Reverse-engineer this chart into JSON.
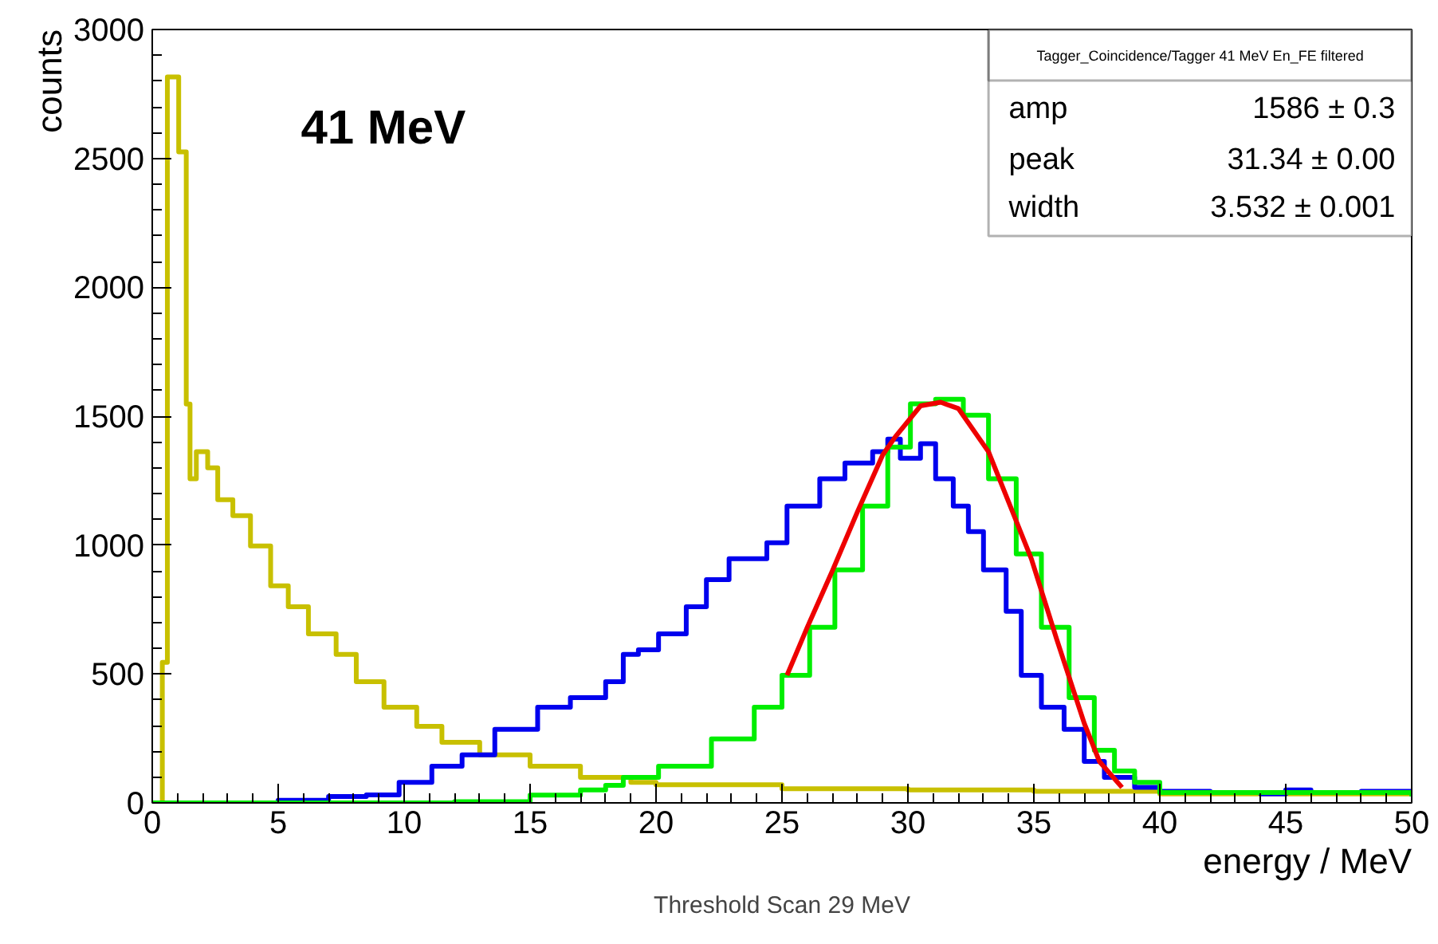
{
  "chart_data": {
    "type": "step",
    "xlabel": "energy / MeV",
    "ylabel": "counts",
    "xlim": [
      0,
      50
    ],
    "ylim": [
      0,
      3000
    ],
    "xticks": [
      0,
      5,
      10,
      15,
      20,
      25,
      30,
      35,
      40,
      45,
      50
    ],
    "yticks": [
      0,
      500,
      1000,
      1500,
      2000,
      2500,
      3000
    ],
    "grid": false,
    "annotations": [
      "41 MeV",
      "Tagger_Coincidence/Tagger 41 MeV En_FE filtered",
      "amp",
      "1586 ± 0.3",
      "peak",
      "31.34 ± 0.00",
      "width",
      "3.532 ± 0.001",
      "Threshold Scan 29 MeV"
    ],
    "series": [
      {
        "color": "#c8c000",
        "x": [
          0,
          0.4,
          0.6,
          1.05,
          1.35,
          1.5,
          1.75,
          2.2,
          2.6,
          3.2,
          3.9,
          4.7,
          5.4,
          6.2,
          7.3,
          8.1,
          9.2,
          10.5,
          11.5,
          13,
          15,
          17,
          19,
          20,
          25,
          30,
          35,
          40,
          45,
          50
        ],
        "values": [
          0,
          545,
          2816,
          2525,
          1547,
          1257,
          1362,
          1300,
          1176,
          1114,
          997,
          842,
          761,
          656,
          576,
          470,
          371,
          297,
          235,
          186,
          142,
          99,
          80,
          70,
          55,
          50,
          45,
          35,
          35,
          35
        ]
      },
      {
        "color": "#0000ee",
        "x": [
          0,
          5,
          7,
          8.5,
          9.8,
          11.1,
          12.3,
          13.6,
          15.3,
          16.6,
          18,
          18.7,
          19.3,
          20.1,
          21.2,
          22,
          22.9,
          24.4,
          25.2,
          26.5,
          27.5,
          28.6,
          29.2,
          29.7,
          30.5,
          31.1,
          31.8,
          32.4,
          33,
          33.9,
          34.5,
          35.3,
          36.2,
          37,
          37.8,
          39,
          40,
          42,
          44,
          45,
          46,
          48,
          50
        ],
        "values": [
          0,
          10,
          25,
          31,
          80,
          142,
          186,
          285,
          371,
          408,
          470,
          576,
          594,
          656,
          761,
          866,
          947,
          1009,
          1151,
          1257,
          1318,
          1362,
          1411,
          1337,
          1393,
          1257,
          1151,
          1052,
          904,
          743,
          495,
          371,
          285,
          161,
          99,
          60,
          45,
          40,
          35,
          50,
          40,
          45,
          30
        ]
      },
      {
        "color": "#00ee00",
        "x": [
          0,
          12,
          15,
          17,
          18,
          18.7,
          20.1,
          22.2,
          23.9,
          25,
          26.1,
          27.1,
          28.2,
          29.2,
          30.1,
          31.1,
          32.2,
          33.2,
          34.3,
          35.3,
          36.4,
          37.4,
          38.2,
          39,
          40,
          50
        ],
        "values": [
          0,
          5,
          30,
          50,
          68,
          99,
          142,
          248,
          371,
          495,
          681,
          904,
          1151,
          1380,
          1548,
          1566,
          1504,
          1257,
          966,
          681,
          408,
          204,
          124,
          80,
          40,
          25
        ]
      },
      {
        "type": "line",
        "color": "#ee0000",
        "x": [
          25.2,
          26,
          27,
          28,
          29,
          29.5,
          30.5,
          31.3,
          32,
          33.2,
          34.9,
          35.9,
          37,
          37.6,
          38.5
        ],
        "values": [
          495,
          680,
          900,
          1130,
          1350,
          1420,
          1540,
          1554,
          1530,
          1362,
          947,
          637,
          309,
          161,
          60
        ]
      }
    ]
  }
}
